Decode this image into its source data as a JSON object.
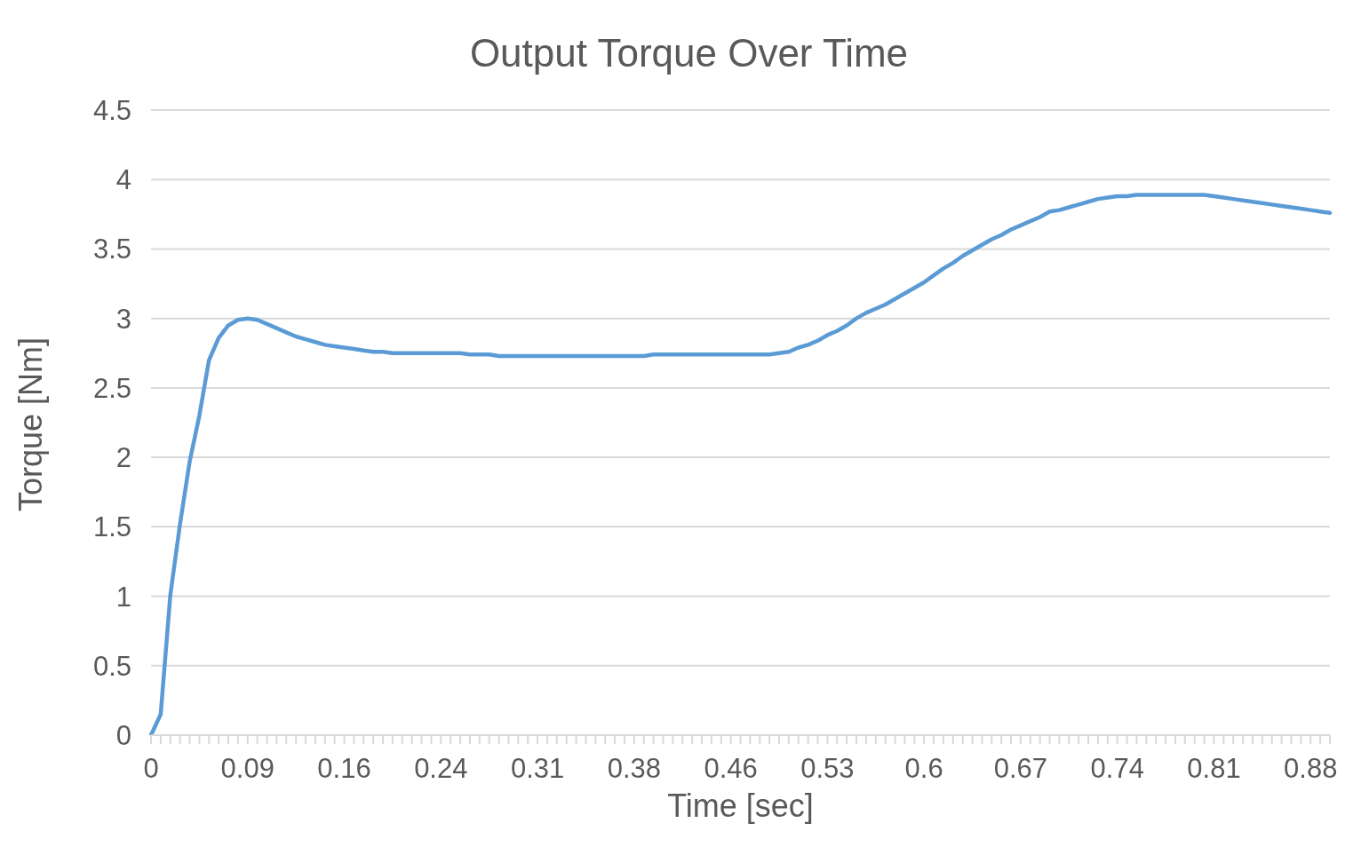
{
  "chart_data": {
    "type": "line",
    "title": "Output Torque Over Time",
    "xlabel": "Time [sec]",
    "ylabel": "Torque [Nm]",
    "categories": [
      "0",
      null,
      null,
      null,
      null,
      null,
      null,
      null,
      null,
      null,
      "0.09",
      null,
      null,
      null,
      null,
      null,
      null,
      null,
      null,
      null,
      "0.16",
      null,
      null,
      null,
      null,
      null,
      null,
      null,
      null,
      null,
      "0.24",
      null,
      null,
      null,
      null,
      null,
      null,
      null,
      null,
      null,
      "0.31",
      null,
      null,
      null,
      null,
      null,
      null,
      null,
      null,
      null,
      "0.38",
      null,
      null,
      null,
      null,
      null,
      null,
      null,
      null,
      null,
      "0.46",
      null,
      null,
      null,
      null,
      null,
      null,
      null,
      null,
      null,
      "0.53",
      null,
      null,
      null,
      null,
      null,
      null,
      null,
      null,
      null,
      "0.6",
      null,
      null,
      null,
      null,
      null,
      null,
      null,
      null,
      null,
      "0.67",
      null,
      null,
      null,
      null,
      null,
      null,
      null,
      null,
      null,
      "0.74",
      null,
      null,
      null,
      null,
      null,
      null,
      null,
      null,
      null,
      "0.81",
      null,
      null,
      null,
      null,
      null,
      null,
      null,
      null,
      null,
      "0.88",
      null,
      null
    ],
    "series": [
      {
        "color": "#5b9bd5",
        "values": [
          0,
          0.15,
          1.01,
          1.52,
          1.97,
          2.3,
          2.7,
          2.86,
          2.95,
          2.99,
          3.0,
          2.99,
          2.96,
          2.93,
          2.9,
          2.87,
          2.85,
          2.83,
          2.81,
          2.8,
          2.79,
          2.78,
          2.77,
          2.76,
          2.76,
          2.75,
          2.75,
          2.75,
          2.75,
          2.75,
          2.75,
          2.75,
          2.75,
          2.74,
          2.74,
          2.74,
          2.73,
          2.73,
          2.73,
          2.73,
          2.73,
          2.73,
          2.73,
          2.73,
          2.73,
          2.73,
          2.73,
          2.73,
          2.73,
          2.73,
          2.73,
          2.73,
          2.74,
          2.74,
          2.74,
          2.74,
          2.74,
          2.74,
          2.74,
          2.74,
          2.74,
          2.74,
          2.74,
          2.74,
          2.74,
          2.75,
          2.76,
          2.79,
          2.81,
          2.84,
          2.88,
          2.91,
          2.95,
          3.0,
          3.04,
          3.07,
          3.1,
          3.14,
          3.18,
          3.22,
          3.26,
          3.31,
          3.36,
          3.4,
          3.45,
          3.49,
          3.53,
          3.57,
          3.6,
          3.64,
          3.67,
          3.7,
          3.73,
          3.77,
          3.78,
          3.8,
          3.82,
          3.84,
          3.86,
          3.87,
          3.88,
          3.88,
          3.89,
          3.89,
          3.89,
          3.89,
          3.89,
          3.89,
          3.89,
          3.89,
          3.88,
          3.87,
          3.86,
          3.85,
          3.84,
          3.83,
          3.82,
          3.81,
          3.8,
          3.79,
          3.78,
          3.77,
          3.76
        ]
      }
    ],
    "ylim": [
      0,
      4.5
    ],
    "yticks": [
      0,
      0.5,
      1,
      1.5,
      2,
      2.5,
      3,
      3.5,
      4,
      4.5
    ],
    "grid": "y",
    "marker": "none",
    "line_style": "solid"
  }
}
